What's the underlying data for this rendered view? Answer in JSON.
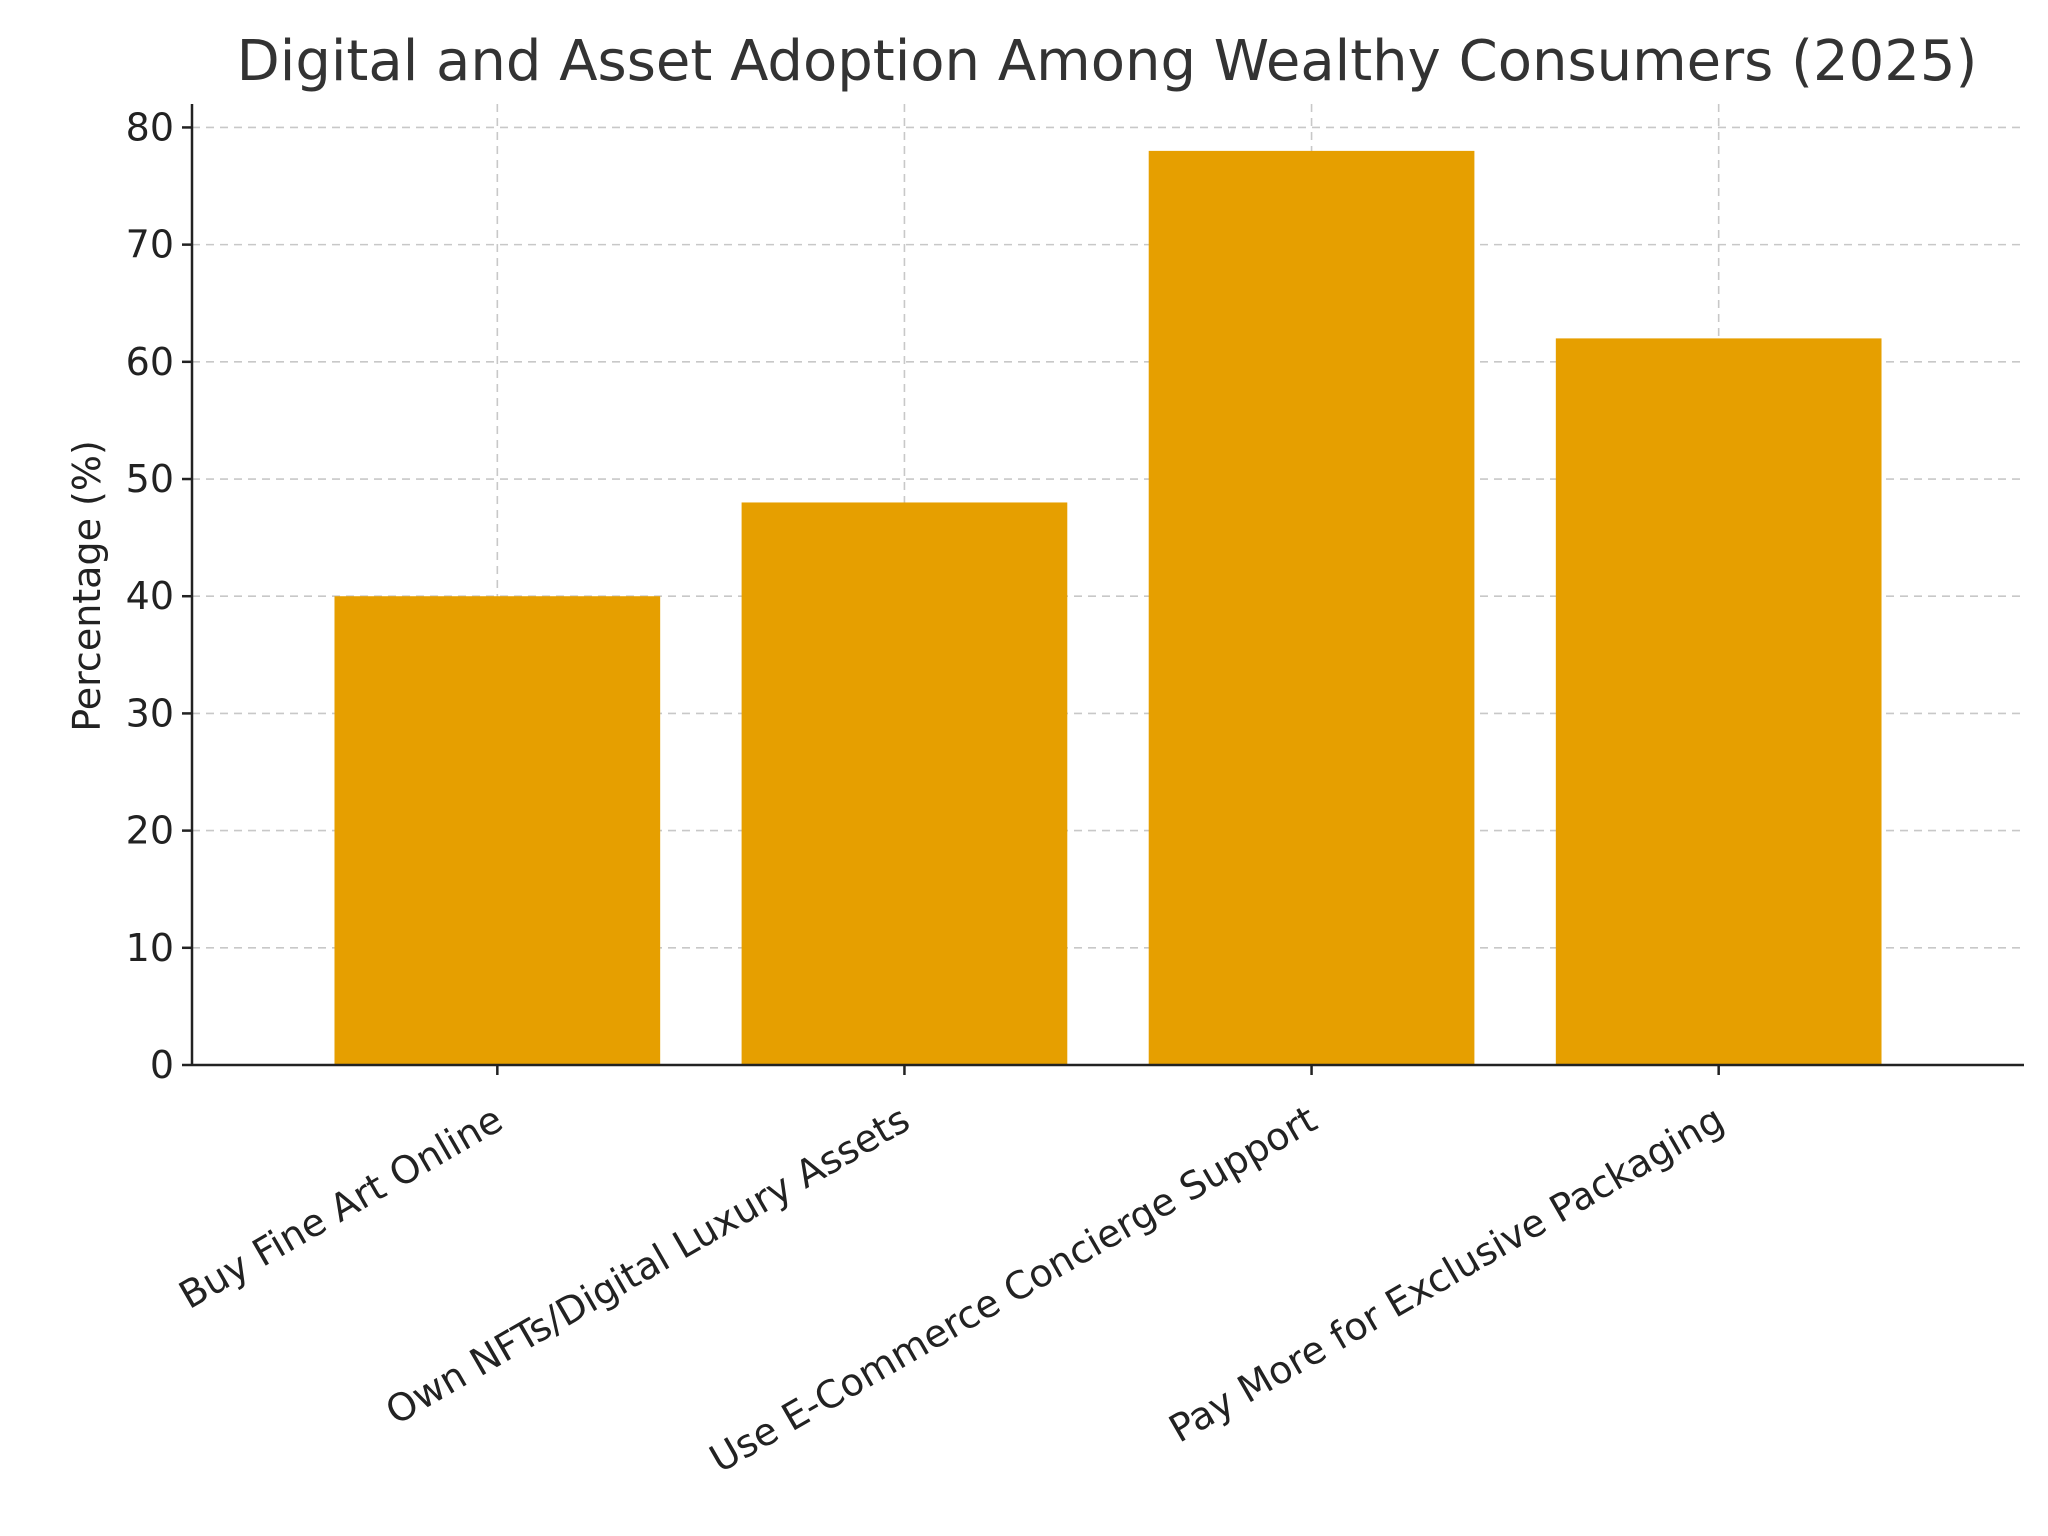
{
  "chart_data": {
    "type": "bar",
    "title": "Digital and Asset Adoption Among Wealthy Consumers (2025)",
    "xlabel": "",
    "ylabel": "Percentage (%)",
    "categories": [
      "Buy Fine Art Online",
      "Own NFTs/Digital Luxury Assets",
      "Use E-Commerce Concierge Support",
      "Pay More for Exclusive Packaging"
    ],
    "values": [
      40,
      48,
      78,
      62
    ],
    "ylim": [
      0,
      82
    ],
    "yticks": [
      0,
      10,
      20,
      30,
      40,
      50,
      60,
      70,
      80
    ],
    "grid": true,
    "bar_color": "#E69F00"
  }
}
